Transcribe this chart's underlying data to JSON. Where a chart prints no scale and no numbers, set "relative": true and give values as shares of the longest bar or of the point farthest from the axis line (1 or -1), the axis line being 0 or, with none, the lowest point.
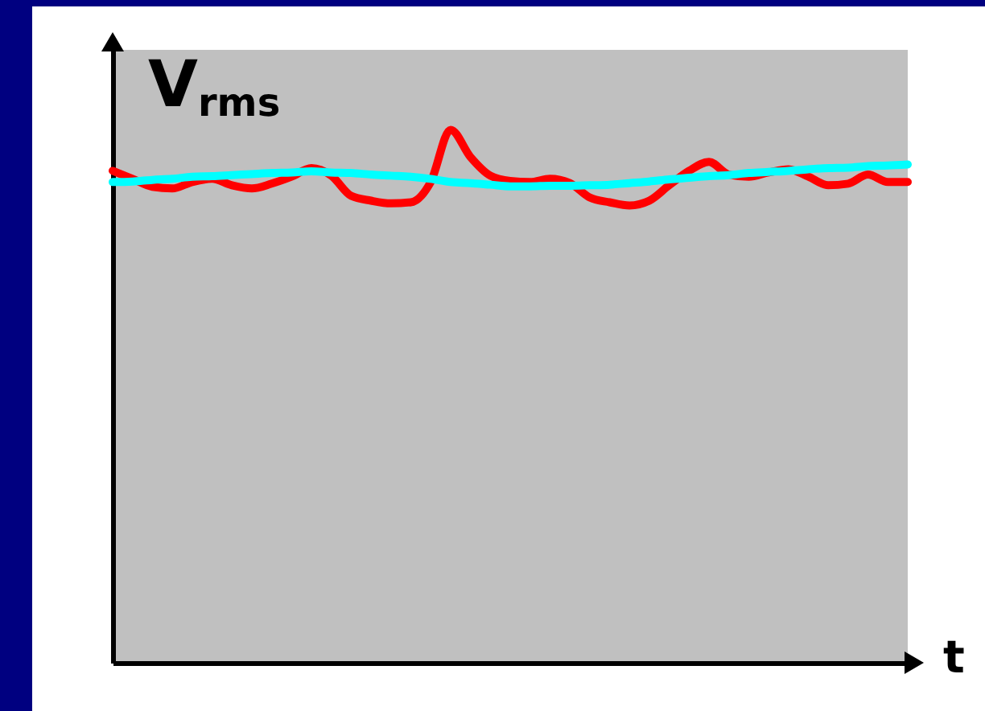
{
  "chart_data": {
    "type": "line",
    "relative": true,
    "legend": false,
    "tick_labels": false,
    "line_style": "solid",
    "xlabel": "t",
    "ylabel": "V$_{rms}$",
    "categories": [
      null,
      null,
      null,
      null,
      null,
      null,
      null,
      null,
      null,
      null,
      null,
      null,
      null,
      null,
      null,
      null,
      null,
      null,
      null,
      null,
      null,
      null,
      null,
      null,
      null,
      null,
      null,
      null,
      null,
      null,
      null,
      null,
      null,
      null,
      null,
      null,
      null,
      null,
      null,
      null,
      null
    ],
    "series": [
      {
        "color": "#ff0000",
        "values": [
          0.923,
          0.908,
          0.893,
          0.89,
          0.902,
          0.908,
          0.896,
          0.89,
          0.899,
          0.912,
          0.928,
          0.914,
          0.876,
          0.867,
          0.862,
          0.864,
          0.902,
          1,
          0.949,
          0.914,
          0.904,
          0.902,
          0.908,
          0.9,
          0.873,
          0.864,
          0.858,
          0.867,
          0.896,
          0.923,
          0.94,
          0.916,
          0.912,
          0.92,
          0.926,
          0.912,
          0.896,
          0.899,
          0.916,
          0.902,
          0.902
        ]
      },
      {
        "color": "#00ffff",
        "values": [
          0.902,
          0.903,
          0.906,
          0.908,
          0.912,
          0.913,
          0.915,
          0.917,
          0.919,
          0.92,
          0.922,
          0.92,
          0.919,
          0.916,
          0.914,
          0.912,
          0.908,
          0.902,
          0.9,
          0.897,
          0.894,
          0.894,
          0.895,
          0.895,
          0.896,
          0.897,
          0.9,
          0.903,
          0.907,
          0.91,
          0.913,
          0.915,
          0.919,
          0.921,
          0.923,
          0.926,
          0.928,
          0.929,
          0.932,
          0.933,
          0.935
        ]
      }
    ]
  }
}
